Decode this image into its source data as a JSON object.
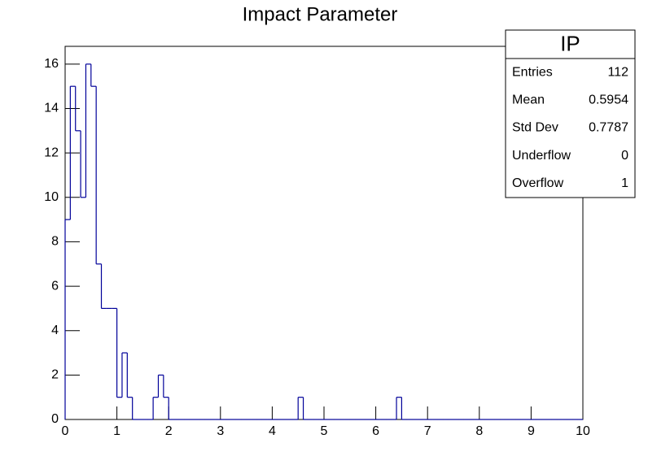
{
  "chart_data": {
    "type": "histogram",
    "title": "Impact Parameter",
    "bins": [
      0,
      0.1,
      0.2,
      0.3,
      0.4,
      0.5,
      0.6,
      0.7,
      0.8,
      0.9,
      1,
      1.1,
      1.2,
      1.3,
      1.4,
      1.5,
      1.6,
      1.7,
      1.8,
      1.9,
      2,
      2.1,
      2.2,
      2.3,
      2.4,
      2.5,
      2.6,
      2.7,
      2.8,
      2.9,
      3,
      3.1,
      3.2,
      3.3,
      3.4,
      3.5,
      3.6,
      3.7,
      3.8,
      3.9,
      4,
      4.1,
      4.2,
      4.3,
      4.4,
      4.5,
      4.6,
      4.7,
      4.8,
      4.9,
      5,
      5.1,
      5.2,
      5.3,
      5.4,
      5.5,
      5.6,
      5.7,
      5.8,
      5.9,
      6,
      6.1,
      6.2,
      6.3,
      6.4,
      6.5,
      6.6,
      6.7,
      6.8,
      6.9,
      7,
      7.1,
      7.2,
      7.3,
      7.4,
      7.5,
      7.6,
      7.7,
      7.8,
      7.9,
      8,
      8.1,
      8.2,
      8.3,
      8.4,
      8.5,
      8.6,
      8.7,
      8.8,
      8.9,
      9,
      9.1,
      9.2,
      9.3,
      9.4,
      9.5,
      9.6,
      9.7,
      9.8,
      9.9,
      10
    ],
    "values": [
      9,
      15,
      13,
      10,
      16,
      15,
      7,
      5,
      5,
      5,
      1,
      3,
      1,
      0,
      0,
      0,
      0,
      1,
      2,
      1,
      0,
      0,
      0,
      0,
      0,
      0,
      0,
      0,
      0,
      0,
      0,
      0,
      0,
      0,
      0,
      0,
      0,
      0,
      0,
      0,
      0,
      0,
      0,
      0,
      0,
      1,
      0,
      0,
      0,
      0,
      0,
      0,
      0,
      0,
      0,
      0,
      0,
      0,
      0,
      0,
      0,
      0,
      0,
      0,
      1,
      0,
      0,
      0,
      0,
      0,
      0,
      0,
      0,
      0,
      0,
      0,
      0,
      0,
      0,
      0,
      0,
      0,
      0,
      0,
      0,
      0,
      0,
      0,
      0,
      0,
      0,
      0,
      0,
      0,
      0,
      0,
      0,
      0,
      0,
      0
    ],
    "color": "#000099",
    "xlim": [
      0,
      10
    ],
    "xticks": [
      0,
      1,
      2,
      3,
      4,
      5,
      6,
      7,
      8,
      9,
      10
    ],
    "ylim": [
      0,
      16.8
    ],
    "yticks": [
      0,
      2,
      4,
      6,
      8,
      10,
      12,
      14,
      16
    ],
    "stats": {
      "title": "IP",
      "rows": [
        {
          "label": "Entries",
          "value": 112
        },
        {
          "label": "Mean",
          "value": 0.5954
        },
        {
          "label": "Std Dev",
          "value": 0.7787
        },
        {
          "label": "Underflow",
          "value": 0
        },
        {
          "label": "Overflow",
          "value": 1
        }
      ]
    }
  }
}
